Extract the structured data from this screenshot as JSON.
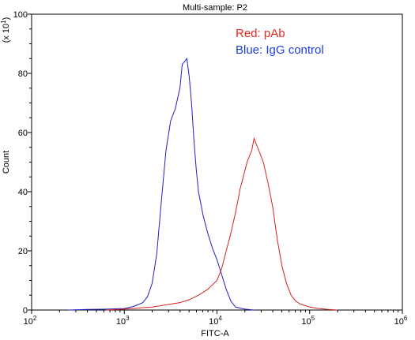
{
  "chart_data": {
    "type": "line",
    "title": "Multi-sample: P2",
    "xlabel": "FITC-A",
    "ylabel": "Count",
    "y_scale_note": "(x 10",
    "y_scale_exp": "1",
    "y_scale_close": ")",
    "x_scale": "log",
    "xlim": [
      100,
      1000000
    ],
    "ylim": [
      0,
      100
    ],
    "x_ticks": [
      {
        "value": 100,
        "base": "10",
        "exp": "2"
      },
      {
        "value": 1000,
        "base": "10",
        "exp": "3"
      },
      {
        "value": 10000,
        "base": "10",
        "exp": "4"
      },
      {
        "value": 100000,
        "base": "10",
        "exp": "5"
      },
      {
        "value": 1000000,
        "base": "10",
        "exp": "6"
      }
    ],
    "y_ticks": [
      "0",
      "20",
      "40",
      "60",
      "80",
      "100"
    ],
    "legend_placement": "top-right",
    "legend": [
      {
        "label": "Red: pAb",
        "color": "#e8281e"
      },
      {
        "label": "Blue: IgG control",
        "color": "#1e3ce6"
      }
    ],
    "series": [
      {
        "color": "#1e1ec8",
        "x": [
          251,
          398,
          631,
          1000,
          1259,
          1585,
          1778,
          1995,
          2239,
          2512,
          2818,
          3162,
          3548,
          3981,
          4217,
          4467,
          4732,
          5012,
          5309,
          5623,
          5957,
          6310,
          7079,
          7943,
          8913,
          10000,
          11220,
          12589,
          14125,
          15849,
          19953,
          25119
        ],
        "y": [
          0,
          0.2,
          0.3,
          0.5,
          1.2,
          2.5,
          4.5,
          9,
          19,
          37,
          54,
          64,
          68,
          75,
          83,
          84,
          85,
          79,
          70,
          58,
          48,
          40,
          32,
          26,
          21,
          17,
          12,
          7,
          3,
          1,
          0.3,
          0
        ]
      },
      {
        "color": "#d81e1e",
        "x": [
          631,
          1000,
          1259,
          1585,
          1995,
          2512,
          3162,
          3981,
          5012,
          6310,
          7943,
          10000,
          11220,
          12589,
          14125,
          15849,
          17783,
          19953,
          21135,
          22387,
          23714,
          25119,
          26607,
          28184,
          31623,
          35481,
          39811,
          44668,
          50119,
          56234,
          63096,
          70795,
          79433,
          89125,
          100000,
          125893,
          158489,
          199526
        ],
        "y": [
          0,
          0.3,
          0.5,
          0.8,
          1,
          1.5,
          2,
          2.5,
          3.5,
          5,
          7,
          10,
          14,
          20,
          26,
          33,
          41,
          47,
          50,
          52,
          54,
          58,
          56,
          54,
          50,
          43,
          35,
          24,
          15,
          9,
          5,
          3,
          2,
          1.5,
          1,
          0.5,
          0.2,
          0
        ]
      }
    ]
  }
}
